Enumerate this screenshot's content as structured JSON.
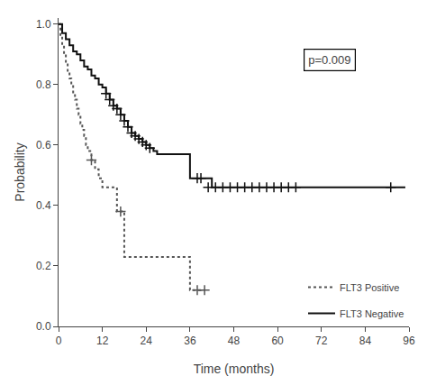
{
  "chart_data": {
    "type": "step",
    "xlabel": "Time (months)",
    "ylabel": "Probability",
    "xlim": [
      0,
      96
    ],
    "ylim": [
      0.0,
      1.02
    ],
    "xticks": [
      0,
      12,
      24,
      36,
      48,
      60,
      72,
      84,
      96
    ],
    "yticks": [
      0.0,
      0.2,
      0.4,
      0.6,
      0.8,
      1.0
    ],
    "annotation": "p=0.009",
    "grid": false,
    "legend": "lower right",
    "series": [
      {
        "name": "FLT3 Positive",
        "color": "#555555",
        "line_style": "dotted",
        "marker": "+",
        "x": [
          0,
          0.5,
          1,
          1.5,
          2,
          2.5,
          3,
          3.5,
          4,
          4.5,
          5,
          5.5,
          6,
          6.5,
          7,
          7.5,
          8,
          9,
          10,
          11,
          12,
          13,
          14,
          15,
          16,
          17,
          18,
          25,
          30,
          35,
          36,
          37,
          38,
          40
        ],
        "values": [
          1.0,
          0.96,
          0.93,
          0.9,
          0.87,
          0.84,
          0.82,
          0.8,
          0.77,
          0.75,
          0.72,
          0.7,
          0.67,
          0.65,
          0.63,
          0.6,
          0.58,
          0.55,
          0.52,
          0.49,
          0.46,
          0.46,
          0.46,
          0.46,
          0.38,
          0.38,
          0.23,
          0.23,
          0.23,
          0.23,
          0.12,
          0.12,
          0.12,
          0.12
        ],
        "censor_x": [
          9,
          17,
          38,
          40
        ],
        "censor_values": [
          0.55,
          0.38,
          0.12,
          0.12
        ]
      },
      {
        "name": "FLT3 Negative",
        "color": "#111111",
        "line_style": "solid",
        "marker": "+",
        "x": [
          0,
          1,
          2,
          3,
          4,
          5,
          6,
          7,
          8,
          9,
          10,
          11,
          12,
          13,
          14,
          15,
          16,
          17,
          18,
          19,
          20,
          21,
          22,
          23,
          24,
          25,
          26,
          27,
          28,
          29,
          30,
          31,
          32,
          33,
          34,
          35,
          36,
          38,
          42,
          44,
          46,
          48,
          50,
          52,
          54,
          56,
          58,
          60,
          62,
          64,
          90,
          95
        ],
        "values": [
          1.0,
          0.97,
          0.95,
          0.93,
          0.91,
          0.9,
          0.88,
          0.86,
          0.85,
          0.83,
          0.82,
          0.8,
          0.79,
          0.77,
          0.75,
          0.73,
          0.72,
          0.7,
          0.68,
          0.66,
          0.64,
          0.63,
          0.62,
          0.61,
          0.6,
          0.59,
          0.58,
          0.57,
          0.57,
          0.57,
          0.57,
          0.57,
          0.57,
          0.57,
          0.57,
          0.57,
          0.49,
          0.49,
          0.46,
          0.46,
          0.46,
          0.46,
          0.46,
          0.46,
          0.46,
          0.46,
          0.46,
          0.46,
          0.46,
          0.46,
          0.46,
          0.46
        ],
        "censor_x": [
          13,
          14,
          15,
          16,
          17,
          18,
          19,
          20,
          21,
          22,
          23,
          24,
          25,
          38,
          39,
          41,
          43,
          45,
          47,
          49,
          51,
          53,
          55,
          57,
          59,
          61,
          63,
          65,
          91
        ],
        "censor_values": [
          0.77,
          0.75,
          0.73,
          0.72,
          0.7,
          0.68,
          0.66,
          0.64,
          0.63,
          0.62,
          0.61,
          0.6,
          0.59,
          0.49,
          0.49,
          0.46,
          0.46,
          0.46,
          0.46,
          0.46,
          0.46,
          0.46,
          0.46,
          0.46,
          0.46,
          0.46,
          0.46,
          0.46,
          0.46
        ]
      }
    ]
  }
}
